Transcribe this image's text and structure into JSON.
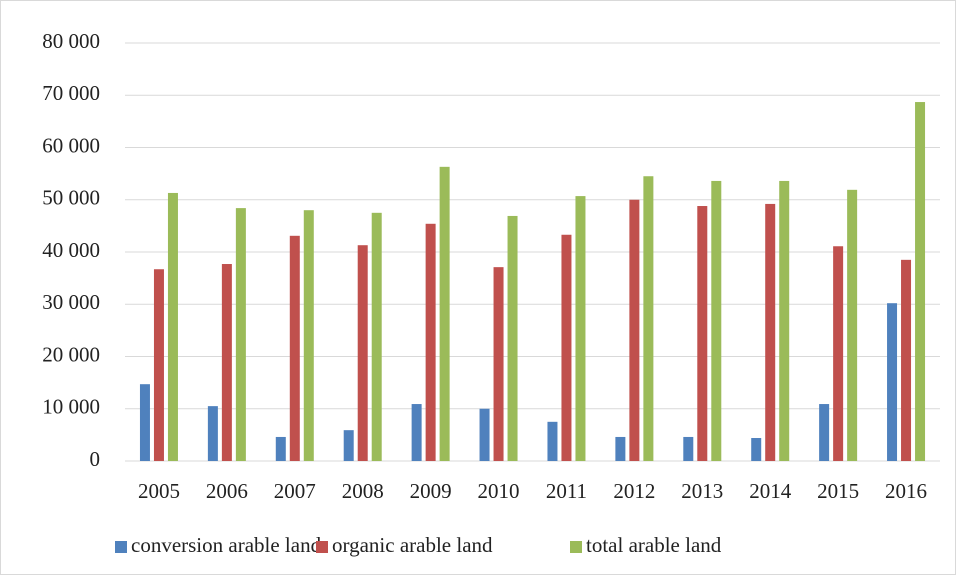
{
  "chart_data": {
    "type": "bar",
    "categories": [
      "2005",
      "2006",
      "2007",
      "2008",
      "2009",
      "2010",
      "2011",
      "2012",
      "2013",
      "2014",
      "2015",
      "2016"
    ],
    "series": [
      {
        "name": "conversion arable land",
        "color": "#4f81bd",
        "values": [
          14700,
          10500,
          4600,
          5900,
          10900,
          10000,
          7500,
          4600,
          4600,
          4400,
          10900,
          30200
        ]
      },
      {
        "name": "organic arable land",
        "color": "#c0504d",
        "values": [
          36700,
          37700,
          43100,
          41300,
          45400,
          37100,
          43300,
          50000,
          48800,
          49200,
          41100,
          38500
        ]
      },
      {
        "name": "total arable land",
        "color": "#9bbb59",
        "values": [
          51300,
          48400,
          48000,
          47500,
          56300,
          46900,
          50700,
          54500,
          53600,
          53600,
          51900,
          68700
        ]
      }
    ],
    "ylim": [
      0,
      80000
    ],
    "yticks": [
      {
        "value": 0,
        "label": "0"
      },
      {
        "value": 10000,
        "label": "10 000"
      },
      {
        "value": 20000,
        "label": "20 000"
      },
      {
        "value": 30000,
        "label": "30 000"
      },
      {
        "value": 40000,
        "label": "40 000"
      },
      {
        "value": 50000,
        "label": "50 000"
      },
      {
        "value": 60000,
        "label": "60 000"
      },
      {
        "value": 70000,
        "label": "70 000"
      },
      {
        "value": 80000,
        "label": "80 000"
      }
    ],
    "grid": true,
    "legend": "bottom"
  }
}
